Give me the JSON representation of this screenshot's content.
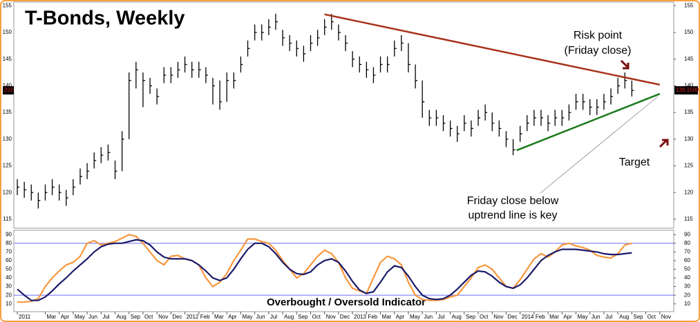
{
  "chart_data": [
    {
      "type": "ohlc",
      "title": "T-Bonds, Weekly",
      "color": "#000000",
      "xlim": [
        -0.5,
        94
      ],
      "ylim": [
        113.3,
        155.7
      ],
      "yticks": [
        115,
        120,
        125,
        130,
        135,
        140,
        145,
        150,
        155
      ],
      "high": [
        122.5,
        122,
        121.5,
        120,
        121.5,
        122.5,
        121.5,
        120.5,
        122.5,
        124.5,
        125.5,
        127.5,
        128.5,
        129,
        126,
        131.5,
        142.5,
        144.5,
        142.5,
        141.5,
        139.5,
        143.5,
        143.5,
        144.5,
        145.5,
        144.5,
        144.5,
        143.5,
        141.5,
        141,
        142.5,
        142.5,
        145.5,
        148.5,
        151.5,
        151.5,
        152.5,
        153.5,
        150.5,
        149.5,
        148.5,
        147.5,
        149.5,
        150.5,
        152.5,
        153.5,
        151.5,
        149.5,
        146.5,
        145.5,
        144.5,
        143.5,
        145.5,
        145.5,
        148.5,
        149.5,
        148,
        144,
        141,
        135.5,
        135.5,
        134.5,
        133.5,
        132.5,
        134.5,
        133.5,
        135.5,
        136.5,
        135,
        133.5,
        131.5,
        130,
        132.5,
        134.5,
        135.5,
        135.5,
        134.5,
        135.5,
        135.5,
        136.5,
        138.5,
        138.5,
        137.5,
        137.5,
        138.5,
        139.5,
        141.5,
        142.5,
        141
      ],
      "low": [
        119.5,
        119,
        118.5,
        117,
        118.5,
        119.5,
        118.5,
        117.5,
        119.5,
        121.5,
        122.5,
        124.5,
        125.5,
        126,
        122.5,
        124,
        130,
        139.5,
        136,
        138.5,
        136.5,
        140.5,
        140.5,
        141.5,
        142.5,
        141.5,
        141.5,
        140.5,
        136.5,
        135.5,
        137,
        139.5,
        142.5,
        145.5,
        148.5,
        148.5,
        149.5,
        150.5,
        147.5,
        146.5,
        145.5,
        144.5,
        146.5,
        147.5,
        149.5,
        150.5,
        148.5,
        146.5,
        143.5,
        142.5,
        141.5,
        140.5,
        142.5,
        142.5,
        145.5,
        146.5,
        142.5,
        139.5,
        134,
        132.5,
        132.5,
        131.5,
        130.5,
        129.5,
        131.5,
        130.5,
        132.5,
        133.5,
        131.5,
        130.5,
        128.5,
        127,
        129.5,
        131.5,
        132.5,
        132.5,
        131.5,
        132.5,
        132.5,
        133.5,
        135.5,
        135.5,
        134.5,
        134.5,
        135.5,
        136.5,
        138.5,
        139.5,
        138
      ],
      "close": [
        121,
        120.5,
        120,
        118.5,
        120,
        121,
        120,
        119,
        121,
        123,
        124,
        126,
        127,
        127.5,
        124,
        130,
        141,
        143,
        141,
        140,
        138,
        142,
        142,
        143,
        144,
        143,
        143,
        142,
        140,
        137,
        141,
        141,
        144,
        147,
        150,
        150,
        151,
        152,
        149,
        148,
        147,
        146,
        148,
        149,
        151,
        152,
        150,
        148,
        145,
        144,
        143,
        142,
        144,
        144,
        147,
        148,
        144,
        141,
        137,
        134,
        134,
        133,
        132,
        131,
        133,
        132,
        134,
        135,
        133,
        132,
        130,
        128,
        131,
        133,
        134,
        134,
        133,
        134,
        134,
        135,
        137,
        137,
        136,
        136,
        137,
        138,
        140,
        141,
        139.15
      ],
      "last_price_label": "139.1500",
      "trendlines": [
        {
          "x": [
            44,
            92
          ],
          "y": [
            153.4,
            140.2
          ],
          "color": "#a8321c"
        },
        {
          "x": [
            71.5,
            92
          ],
          "y": [
            127.9,
            138.5
          ],
          "color": "#1a7a1a"
        }
      ],
      "annotations": [
        "Risk point",
        "(Friday close)",
        "Target",
        "Friday close below",
        "uptrend line is key"
      ]
    },
    {
      "type": "line",
      "title": "Overbought / Oversold Indicator",
      "xlim": [
        -0.5,
        94
      ],
      "ylim": [
        1,
        95
      ],
      "yticks": [
        10,
        20,
        30,
        40,
        50,
        60,
        70,
        80,
        90
      ],
      "levels": [
        80,
        20
      ],
      "level_color": "#6a6af0",
      "xticks": [
        {
          "value": 0,
          "label": "2011"
        },
        {
          "value": 4,
          "label": "Mar"
        },
        {
          "value": 6,
          "label": "Apr"
        },
        {
          "value": 8,
          "label": "May"
        },
        {
          "value": 10,
          "label": "Jun"
        },
        {
          "value": 12,
          "label": "Jul"
        },
        {
          "value": 14,
          "label": "Aug"
        },
        {
          "value": 16,
          "label": "Sep"
        },
        {
          "value": 18,
          "label": "Oct"
        },
        {
          "value": 20,
          "label": "Nov"
        },
        {
          "value": 22,
          "label": "Dec"
        },
        {
          "value": 24,
          "label": "2012"
        },
        {
          "value": 26,
          "label": "Feb"
        },
        {
          "value": 28,
          "label": "Mar"
        },
        {
          "value": 30,
          "label": "Apr"
        },
        {
          "value": 32,
          "label": "May"
        },
        {
          "value": 34,
          "label": "Jun"
        },
        {
          "value": 36,
          "label": "Jul"
        },
        {
          "value": 38,
          "label": "Aug"
        },
        {
          "value": 40,
          "label": "Sep"
        },
        {
          "value": 42,
          "label": "Oct"
        },
        {
          "value": 44,
          "label": "Nov"
        },
        {
          "value": 46,
          "label": "Dec"
        },
        {
          "value": 48,
          "label": "2013"
        },
        {
          "value": 50,
          "label": "Feb"
        },
        {
          "value": 52,
          "label": "Mar"
        },
        {
          "value": 54,
          "label": "Apr"
        },
        {
          "value": 56,
          "label": "May"
        },
        {
          "value": 58,
          "label": "Jun"
        },
        {
          "value": 60,
          "label": "Jul"
        },
        {
          "value": 62,
          "label": "Aug"
        },
        {
          "value": 64,
          "label": "Sep"
        },
        {
          "value": 66,
          "label": "Oct"
        },
        {
          "value": 68,
          "label": "Nov"
        },
        {
          "value": 70,
          "label": "Dec"
        },
        {
          "value": 72,
          "label": "2014"
        },
        {
          "value": 74,
          "label": "Feb"
        },
        {
          "value": 76,
          "label": "Mar"
        },
        {
          "value": 78,
          "label": "Apr"
        },
        {
          "value": 80,
          "label": "May"
        },
        {
          "value": 82,
          "label": "Jun"
        },
        {
          "value": 84,
          "label": "Jul"
        },
        {
          "value": 86,
          "label": "Aug"
        },
        {
          "value": 88,
          "label": "Sep"
        },
        {
          "value": 90,
          "label": "Oct"
        },
        {
          "value": 92,
          "label": "Nov"
        }
      ],
      "series": [
        {
          "color": "#f7963c",
          "values": [
            12,
            12,
            13,
            16,
            30,
            40,
            48,
            55,
            58,
            65,
            80,
            83,
            78,
            80,
            82,
            86,
            90,
            88,
            80,
            70,
            60,
            55,
            65,
            66,
            62,
            60,
            55,
            40,
            30,
            35,
            45,
            60,
            72,
            85,
            85,
            82,
            80,
            72,
            60,
            50,
            40,
            45,
            55,
            65,
            72,
            68,
            58,
            40,
            28,
            25,
            22,
            40,
            58,
            65,
            62,
            55,
            35,
            20,
            15,
            14,
            14,
            15,
            18,
            20,
            30,
            40,
            52,
            55,
            50,
            40,
            30,
            28,
            38,
            50,
            62,
            68,
            64,
            70,
            78,
            80,
            77,
            75,
            72,
            66,
            64,
            63,
            68,
            78,
            80
          ]
        },
        {
          "color": "#1a1a6a",
          "values": [
            27,
            20,
            14,
            14,
            18,
            25,
            33,
            40,
            48,
            55,
            62,
            70,
            76,
            79,
            80,
            80,
            82,
            84,
            83,
            78,
            70,
            64,
            62,
            62,
            62,
            60,
            55,
            48,
            40,
            37,
            40,
            50,
            62,
            73,
            80,
            80,
            76,
            68,
            58,
            50,
            45,
            44,
            47,
            55,
            60,
            62,
            58,
            48,
            36,
            26,
            22,
            24,
            35,
            47,
            54,
            52,
            42,
            30,
            20,
            16,
            15,
            16,
            20,
            27,
            35,
            43,
            48,
            47,
            42,
            35,
            30,
            28,
            32,
            40,
            50,
            60,
            66,
            70,
            73,
            73,
            73,
            72,
            71,
            70,
            68,
            67,
            67,
            68,
            69
          ]
        }
      ]
    }
  ]
}
